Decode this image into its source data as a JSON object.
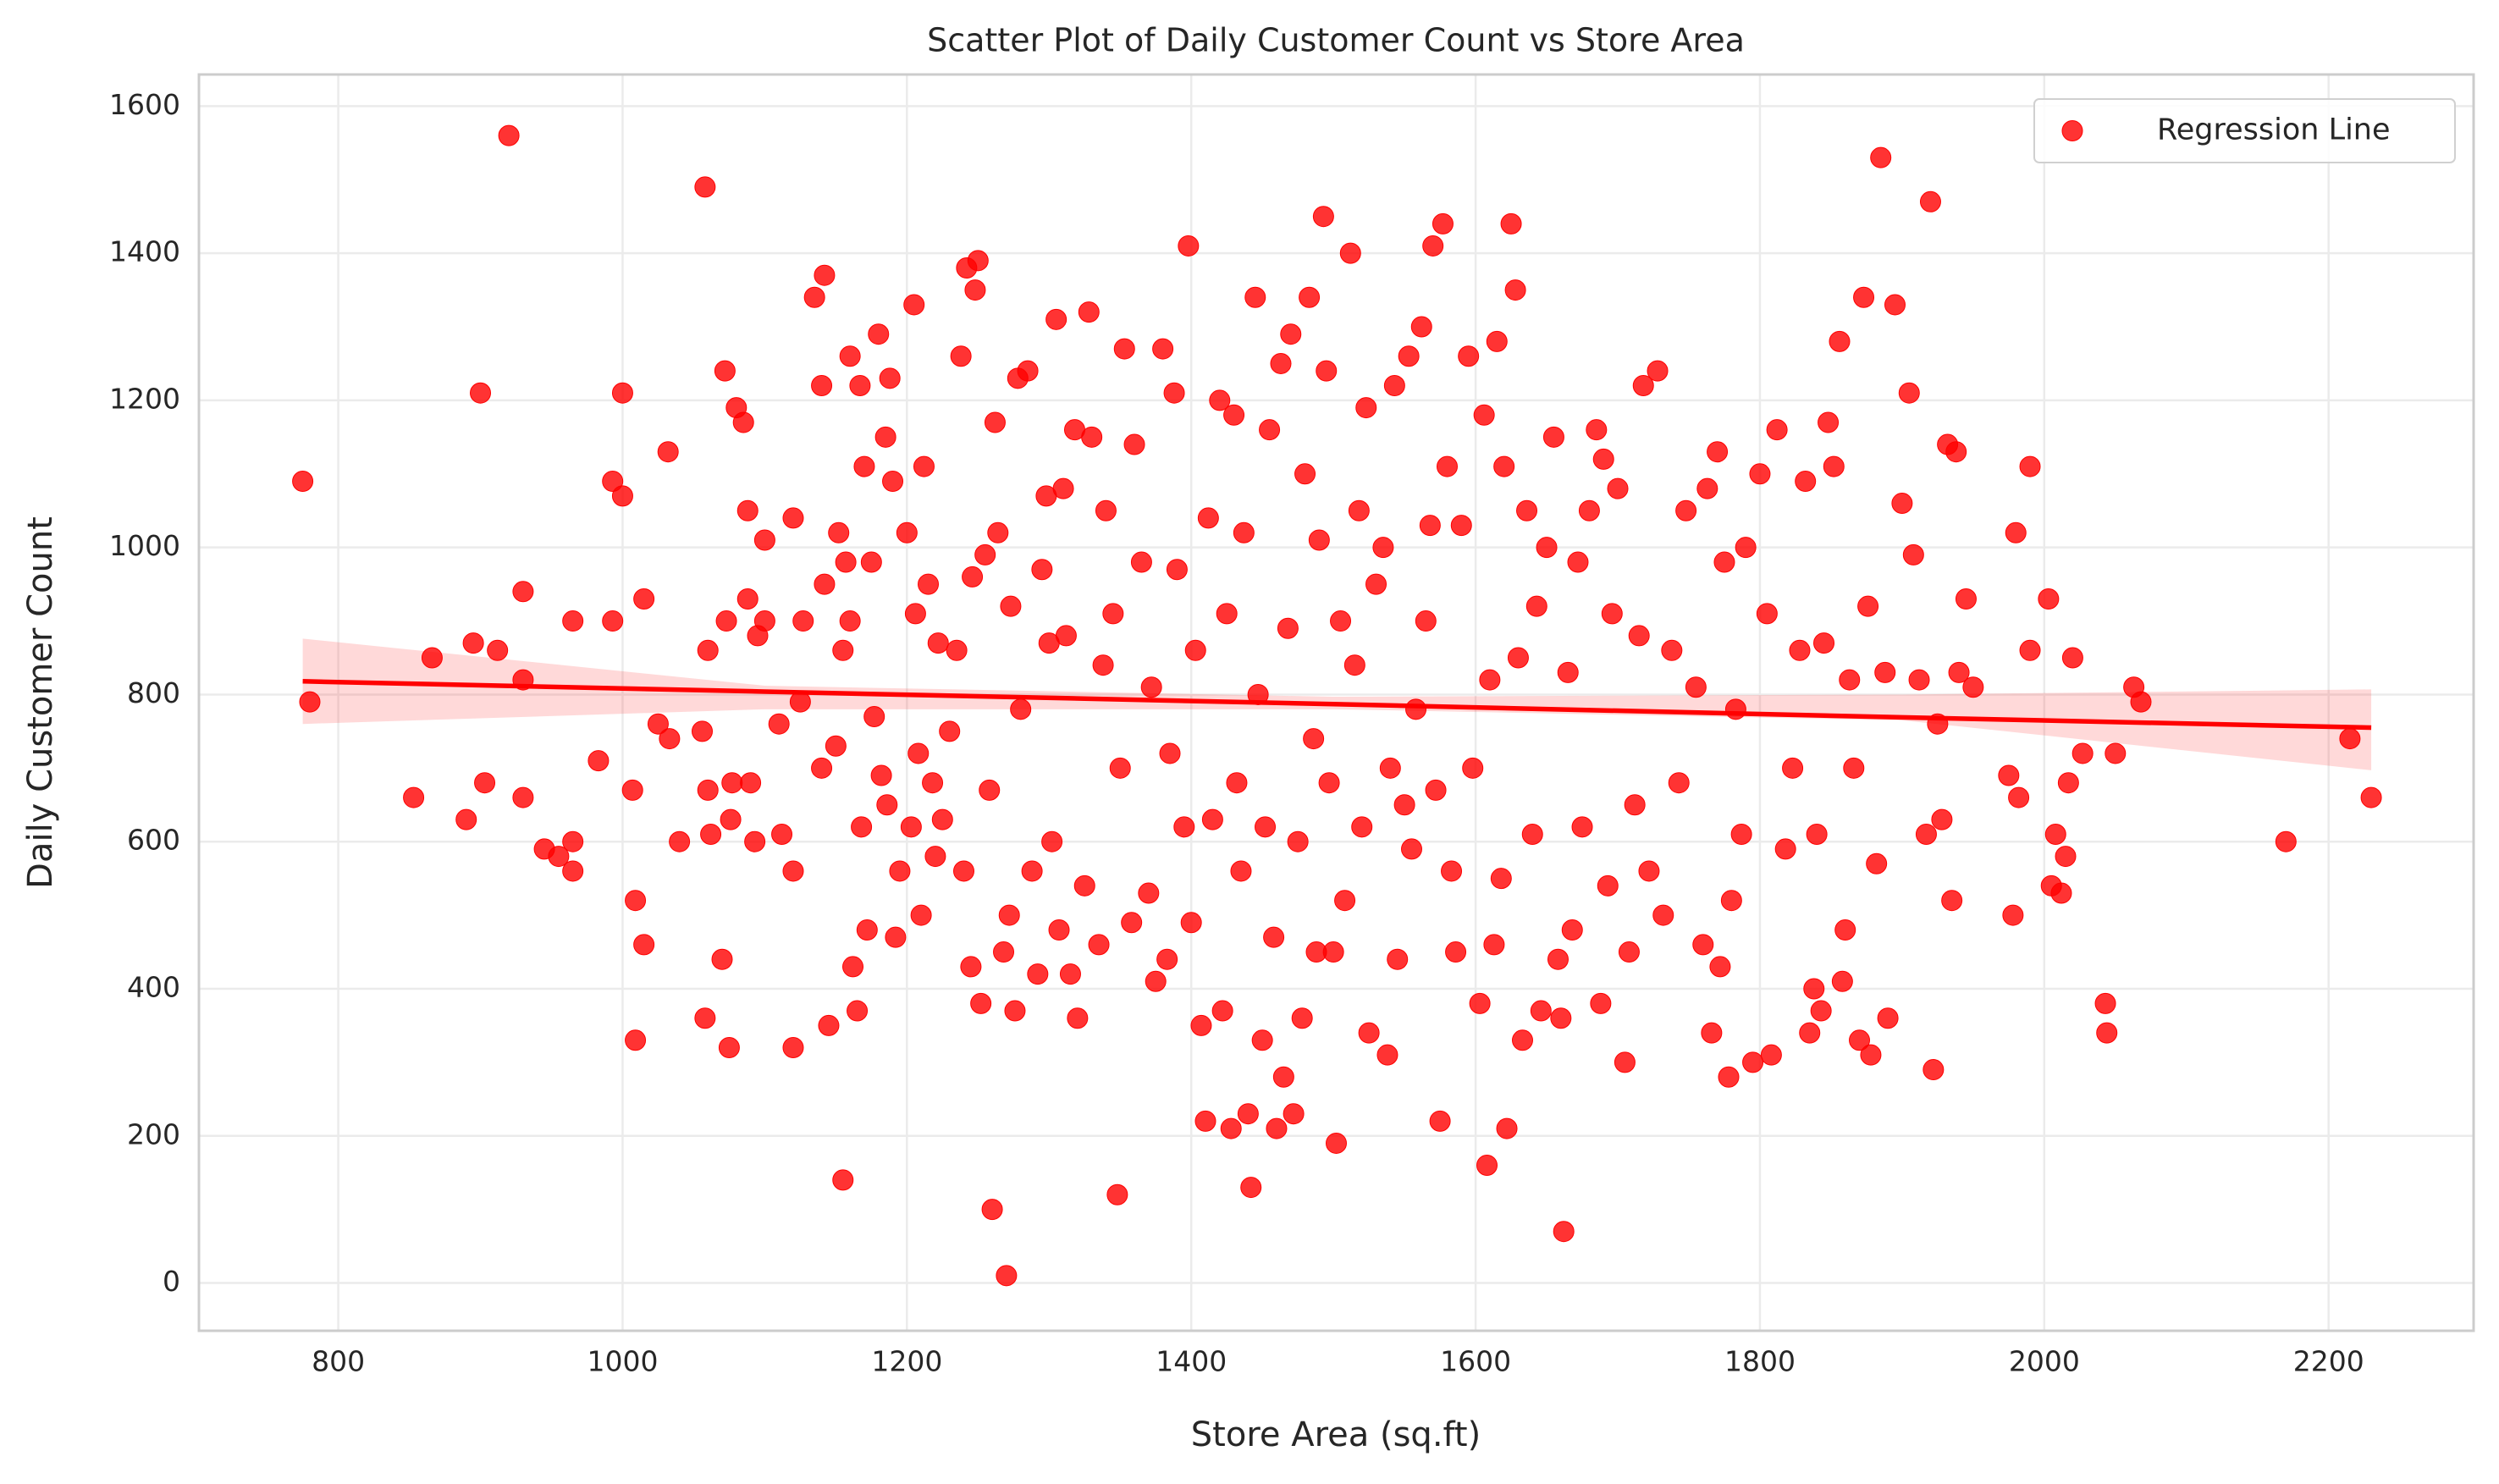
{
  "chart_data": {
    "type": "scatter",
    "title": "Scatter Plot of Daily Customer Count vs Store Area",
    "x_label": "Store Area (sq.ft)",
    "y_label": "Daily Customer Count",
    "xlim": [
      702,
      2302
    ],
    "ylim": [
      -65,
      1643
    ],
    "xticks": [
      800,
      1000,
      1200,
      1400,
      1600,
      1800,
      2000,
      2200
    ],
    "yticks": [
      0,
      200,
      400,
      600,
      800,
      1000,
      1200,
      1400,
      1600
    ],
    "grid": true,
    "legend": "upper right",
    "series": [
      {
        "name": "Regression Line",
        "color": "#ff0000",
        "x": [
          775,
          780,
          853,
          866,
          890,
          895,
          900,
          903,
          912,
          920,
          930,
          930,
          930,
          945,
          955,
          965,
          965,
          965,
          983,
          993,
          993,
          1000,
          1000,
          1007,
          1009,
          1009,
          1015,
          1015,
          1025,
          1032,
          1033,
          1040,
          1056,
          1058,
          1058,
          1060,
          1060,
          1062,
          1070,
          1072,
          1073,
          1075,
          1076,
          1077,
          1080,
          1085,
          1088,
          1088,
          1090,
          1093,
          1095,
          1100,
          1100,
          1110,
          1112,
          1120,
          1120,
          1120,
          1125,
          1127,
          1135,
          1140,
          1140,
          1142,
          1142,
          1145,
          1150,
          1152,
          1155,
          1155,
          1157,
          1160,
          1160,
          1162,
          1165,
          1167,
          1168,
          1170,
          1172,
          1175,
          1177,
          1180,
          1182,
          1185,
          1186,
          1188,
          1190,
          1192,
          1195,
          1200,
          1203,
          1205,
          1206,
          1208,
          1210,
          1212,
          1215,
          1218,
          1220,
          1222,
          1225,
          1230,
          1235,
          1238,
          1240,
          1242,
          1245,
          1246,
          1248,
          1250,
          1252,
          1255,
          1258,
          1260,
          1262,
          1264,
          1268,
          1270,
          1272,
          1273,
          1276,
          1278,
          1280,
          1285,
          1288,
          1292,
          1295,
          1298,
          1300,
          1302,
          1305,
          1307,
          1310,
          1312,
          1315,
          1318,
          1320,
          1325,
          1328,
          1330,
          1335,
          1338,
          1340,
          1345,
          1348,
          1350,
          1353,
          1358,
          1360,
          1365,
          1370,
          1372,
          1375,
          1380,
          1383,
          1385,
          1388,
          1390,
          1395,
          1398,
          1400,
          1403,
          1407,
          1410,
          1412,
          1415,
          1420,
          1422,
          1425,
          1428,
          1430,
          1432,
          1435,
          1437,
          1440,
          1442,
          1445,
          1447,
          1450,
          1452,
          1455,
          1458,
          1460,
          1463,
          1465,
          1468,
          1470,
          1472,
          1475,
          1478,
          1480,
          1483,
          1486,
          1488,
          1490,
          1493,
          1495,
          1497,
          1500,
          1502,
          1505,
          1508,
          1512,
          1515,
          1518,
          1520,
          1523,
          1525,
          1530,
          1535,
          1538,
          1540,
          1543,
          1545,
          1550,
          1553,
          1555,
          1558,
          1562,
          1565,
          1568,
          1570,
          1572,
          1575,
          1577,
          1580,
          1583,
          1586,
          1590,
          1595,
          1598,
          1603,
          1606,
          1608,
          1610,
          1613,
          1615,
          1618,
          1620,
          1622,
          1625,
          1628,
          1630,
          1633,
          1636,
          1640,
          1643,
          1646,
          1650,
          1655,
          1658,
          1660,
          1662,
          1665,
          1668,
          1672,
          1675,
          1680,
          1685,
          1688,
          1690,
          1693,
          1696,
          1700,
          1705,
          1708,
          1712,
          1715,
          1718,
          1722,
          1728,
          1732,
          1738,
          1743,
          1748,
          1755,
          1760,
          1763,
          1766,
          1770,
          1772,
          1775,
          1778,
          1780,
          1783,
          1787,
          1790,
          1795,
          1800,
          1805,
          1808,
          1812,
          1818,
          1823,
          1828,
          1832,
          1835,
          1838,
          1840,
          1843,
          1845,
          1848,
          1852,
          1856,
          1858,
          1860,
          1863,
          1866,
          1870,
          1873,
          1876,
          1878,
          1882,
          1885,
          1888,
          1890,
          1895,
          1900,
          1905,
          1908,
          1912,
          1917,
          1920,
          1922,
          1925,
          1928,
          1932,
          1935,
          1938,
          1940,
          1945,
          1950,
          1975,
          1978,
          1980,
          1982,
          1990,
          1990,
          2003,
          2005,
          2008,
          2012,
          2015,
          2017,
          2020,
          2027,
          2043,
          2044,
          2050,
          2063,
          2068,
          2170,
          2215,
          2230
        ],
        "values": [
          1090,
          790,
          660,
          850,
          630,
          870,
          1210,
          680,
          860,
          1560,
          940,
          820,
          660,
          590,
          580,
          600,
          560,
          900,
          710,
          900,
          1090,
          1070,
          1210,
          670,
          520,
          330,
          460,
          930,
          760,
          1130,
          740,
          600,
          750,
          1490,
          360,
          860,
          670,
          610,
          440,
          1240,
          900,
          320,
          630,
          680,
          1190,
          1170,
          1050,
          930,
          680,
          600,
          880,
          900,
          1010,
          760,
          610,
          1040,
          560,
          320,
          790,
          900,
          1340,
          700,
          1220,
          1370,
          950,
          350,
          730,
          1020,
          860,
          140,
          980,
          1260,
          900,
          430,
          370,
          1220,
          620,
          1110,
          480,
          980,
          770,
          1290,
          690,
          1150,
          650,
          1230,
          1090,
          470,
          560,
          1020,
          620,
          1330,
          910,
          720,
          500,
          1110,
          950,
          680,
          580,
          870,
          630,
          750,
          860,
          1260,
          560,
          1380,
          430,
          960,
          1350,
          1390,
          380,
          990,
          670,
          100,
          1170,
          1020,
          450,
          10,
          500,
          920,
          370,
          1230,
          780,
          1240,
          560,
          420,
          970,
          1070,
          870,
          600,
          1310,
          480,
          1080,
          880,
          420,
          1160,
          360,
          540,
          1320,
          1150,
          460,
          840,
          1050,
          910,
          120,
          700,
          1270,
          490,
          1140,
          980,
          530,
          810,
          410,
          1270,
          440,
          720,
          1210,
          970,
          620,
          1410,
          490,
          860,
          350,
          220,
          1040,
          630,
          1200,
          370,
          910,
          210,
          1180,
          680,
          560,
          1020,
          230,
          130,
          1340,
          800,
          330,
          620,
          1160,
          470,
          210,
          1250,
          280,
          890,
          1290,
          230,
          600,
          360,
          1100,
          1340,
          740,
          450,
          1010,
          1450,
          1240,
          680,
          450,
          190,
          900,
          520,
          1400,
          840,
          1050,
          620,
          1190,
          340,
          950,
          1000,
          310,
          700,
          1220,
          440,
          650,
          1260,
          590,
          780,
          1300,
          900,
          1030,
          1410,
          670,
          220,
          1440,
          1110,
          560,
          450,
          1030,
          1260,
          700,
          380,
          1180,
          160,
          820,
          460,
          1280,
          550,
          1110,
          210,
          1440,
          1350,
          850,
          330,
          1050,
          610,
          920,
          370,
          1000,
          1150,
          440,
          360,
          70,
          830,
          480,
          980,
          620,
          1050,
          1160,
          380,
          1120,
          540,
          910,
          1080,
          300,
          450,
          650,
          880,
          1220,
          560,
          1240,
          500,
          860,
          680,
          1050,
          810,
          460,
          1080,
          340,
          1130,
          430,
          980,
          280,
          520,
          780,
          610,
          1000,
          300,
          1100,
          910,
          310,
          1160,
          590,
          700,
          860,
          1090,
          340,
          400,
          610,
          370,
          870,
          1170,
          1110,
          1280,
          410,
          480,
          820,
          700,
          330,
          1340,
          920,
          310,
          570,
          1530,
          830,
          360,
          1330,
          1060,
          1210,
          990,
          820,
          610,
          1470,
          290,
          760,
          630,
          1140,
          520,
          1130,
          830,
          930,
          810,
          690,
          500,
          1020,
          660,
          860,
          1110,
          930,
          540,
          610,
          530,
          580,
          680,
          850,
          720,
          380,
          340,
          720,
          810,
          790,
          600,
          740,
          660
        ]
      }
    ],
    "regression": {
      "color": "#ff0000",
      "x": [
        775,
        1100,
        1500,
        1900,
        2230
      ],
      "values": [
        818,
        804,
        787,
        769,
        755
      ],
      "lower": [
        760,
        780,
        780,
        765,
        697
      ],
      "upper": [
        876,
        812,
        797,
        800,
        807
      ]
    }
  }
}
